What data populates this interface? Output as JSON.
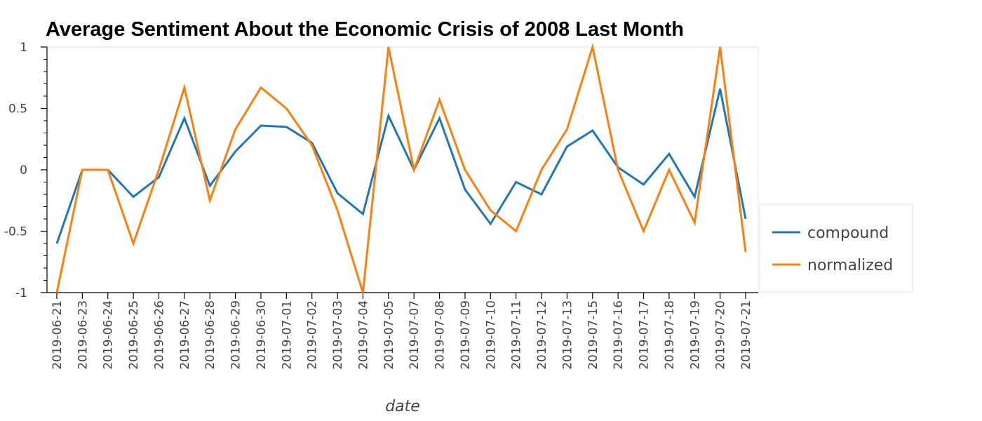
{
  "chart_data": {
    "type": "line",
    "title": "Average Sentiment About the Economic Crisis of 2008 Last Month",
    "xlabel": "date",
    "ylabel": "",
    "ylim": [
      -1,
      1
    ],
    "yticks": [
      {
        "value": 1,
        "label": "1"
      },
      {
        "value": 0.5,
        "label": "0.5"
      },
      {
        "value": 0,
        "label": "0"
      },
      {
        "value": -0.5,
        "label": "-0.5"
      },
      {
        "value": -1,
        "label": "-1"
      }
    ],
    "legend_position": "right",
    "grid": false,
    "categories": [
      "2019-06-21",
      "2019-06-23",
      "2019-06-24",
      "2019-06-25",
      "2019-06-26",
      "2019-06-27",
      "2019-06-28",
      "2019-06-29",
      "2019-06-30",
      "2019-07-01",
      "2019-07-02",
      "2019-07-03",
      "2019-07-04",
      "2019-07-05",
      "2019-07-07",
      "2019-07-08",
      "2019-07-09",
      "2019-07-10",
      "2019-07-11",
      "2019-07-12",
      "2019-07-13",
      "2019-07-15",
      "2019-07-16",
      "2019-07-17",
      "2019-07-18",
      "2019-07-19",
      "2019-07-20",
      "2019-07-21"
    ],
    "series": [
      {
        "name": "compound",
        "color": "#1f77b4",
        "values": [
          -0.6,
          0.0,
          0.0,
          -0.22,
          -0.06,
          0.42,
          -0.13,
          0.15,
          0.36,
          0.35,
          0.22,
          -0.19,
          -0.36,
          0.44,
          0.0,
          0.42,
          -0.16,
          -0.44,
          -0.1,
          -0.2,
          0.19,
          0.32,
          0.02,
          -0.12,
          0.13,
          -0.22,
          0.66,
          -0.4
        ]
      },
      {
        "name": "normalized",
        "color": "#ff7f0e",
        "values": [
          -1.0,
          0.0,
          0.0,
          -0.6,
          0.0,
          0.67,
          -0.25,
          0.33,
          0.67,
          0.5,
          0.2,
          -0.33,
          -1.0,
          1.0,
          0.0,
          0.57,
          0.0,
          -0.33,
          -0.5,
          0.0,
          0.33,
          1.0,
          0.0,
          -0.5,
          0.0,
          -0.43,
          1.0,
          -0.67
        ]
      }
    ]
  }
}
